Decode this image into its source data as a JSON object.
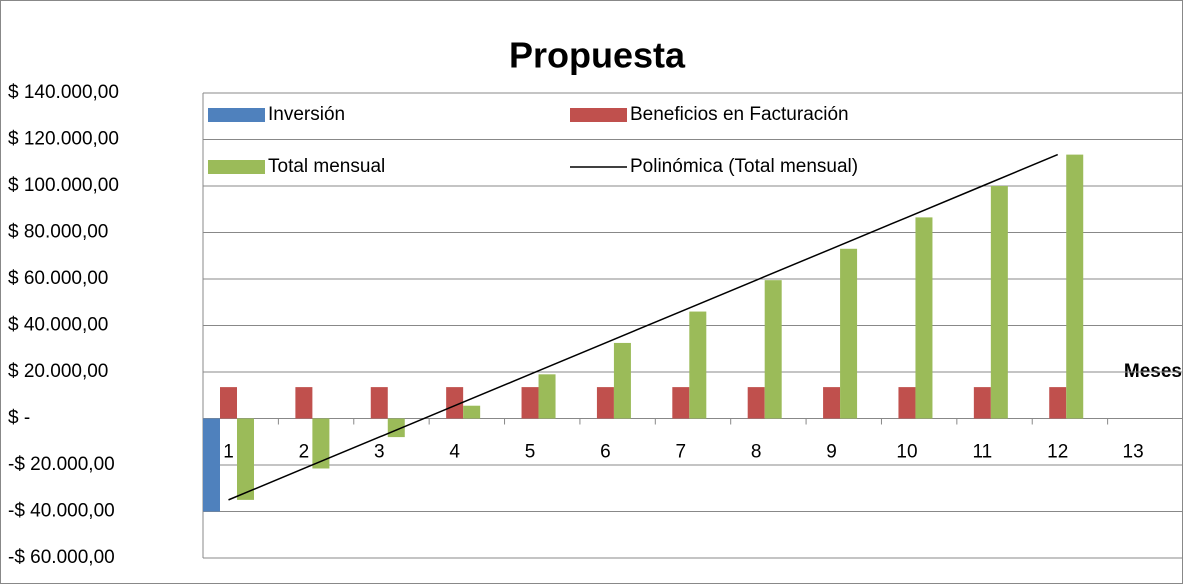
{
  "chart_data": {
    "type": "bar",
    "title": "Propuesta",
    "x_label": "Meses",
    "categories": [
      "1",
      "2",
      "3",
      "4",
      "5",
      "6",
      "7",
      "8",
      "9",
      "10",
      "11",
      "12",
      "13"
    ],
    "series": [
      {
        "name": "Inversión",
        "color": "#4f81bd",
        "values": [
          -40000,
          null,
          null,
          null,
          null,
          null,
          null,
          null,
          null,
          null,
          null,
          null,
          null
        ]
      },
      {
        "name": "Beneficios en Facturación",
        "color": "#c0504d",
        "values": [
          13500,
          13500,
          13500,
          13500,
          13500,
          13500,
          13500,
          13500,
          13500,
          13500,
          13500,
          13500,
          null
        ]
      },
      {
        "name": "Total mensual",
        "color": "#9bbb59",
        "values": [
          -35000,
          -21500,
          -8000,
          5500,
          19000,
          32500,
          46000,
          59500,
          73000,
          86500,
          100000,
          113500,
          null
        ]
      }
    ],
    "trendline": {
      "name": "Polinómica (Total mensual)",
      "color": "#000000",
      "values": [
        -35000,
        -21500,
        -8000,
        5500,
        19000,
        32500,
        46000,
        59500,
        73000,
        86500,
        100000,
        113500,
        null
      ]
    },
    "ylim": [
      -60000,
      140000
    ],
    "yticks": [
      {
        "value": 140000,
        "label": "$ 140.000,00"
      },
      {
        "value": 120000,
        "label": "$ 120.000,00"
      },
      {
        "value": 100000,
        "label": "$ 100.000,00"
      },
      {
        "value": 80000,
        "label": "$ 80.000,00"
      },
      {
        "value": 60000,
        "label": "$ 60.000,00"
      },
      {
        "value": 40000,
        "label": "$ 40.000,00"
      },
      {
        "value": 20000,
        "label": "$ 20.000,00"
      },
      {
        "value": 0,
        "label": "$ -"
      },
      {
        "value": -20000,
        "label": "-$ 20.000,00"
      },
      {
        "value": -40000,
        "label": "-$ 40.000,00"
      },
      {
        "value": -60000,
        "label": "-$ 60.000,00"
      }
    ],
    "grid": true
  }
}
